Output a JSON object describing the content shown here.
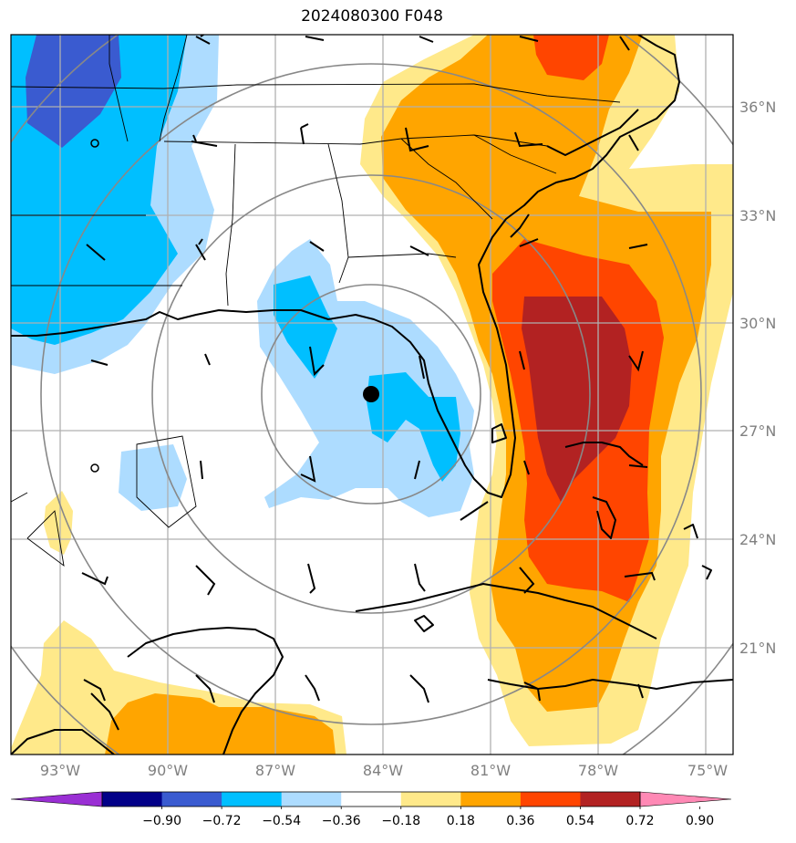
{
  "title": "2024080300 F048",
  "lon_labels": [
    "93°W",
    "90°W",
    "87°W",
    "84°W",
    "81°W",
    "78°W",
    "75°W"
  ],
  "lat_labels": [
    "36°N",
    "33°N",
    "30°N",
    "27°N",
    "24°N",
    "21°N"
  ],
  "colorbar": {
    "tick_labels": [
      "−0.90",
      "−0.72",
      "−0.54",
      "−0.36",
      "−0.18",
      "0.18",
      "0.36",
      "0.54",
      "0.72",
      "0.90"
    ],
    "colors": [
      "#9a2fd4",
      "#020088",
      "#3a5bd0",
      "#00bfff",
      "#addcff",
      "#ffffff",
      "#ffe98a",
      "#ffa500",
      "#ff4500",
      "#b22222",
      "#ff89b5"
    ]
  },
  "palette": {
    "strong_negative": "#3a5bd0",
    "negative": "#00bfff",
    "weak_negative": "#addcff",
    "weak_positive": "#ffe98a",
    "positive": "#ffa500",
    "strong_positive": "#ff4500",
    "max_positive": "#b22222"
  },
  "storm_center_marker": "filled-circle",
  "map_features": [
    "coastlines",
    "state-borders",
    "range-rings",
    "wind-barbs",
    "lat-lon-grid"
  ]
}
